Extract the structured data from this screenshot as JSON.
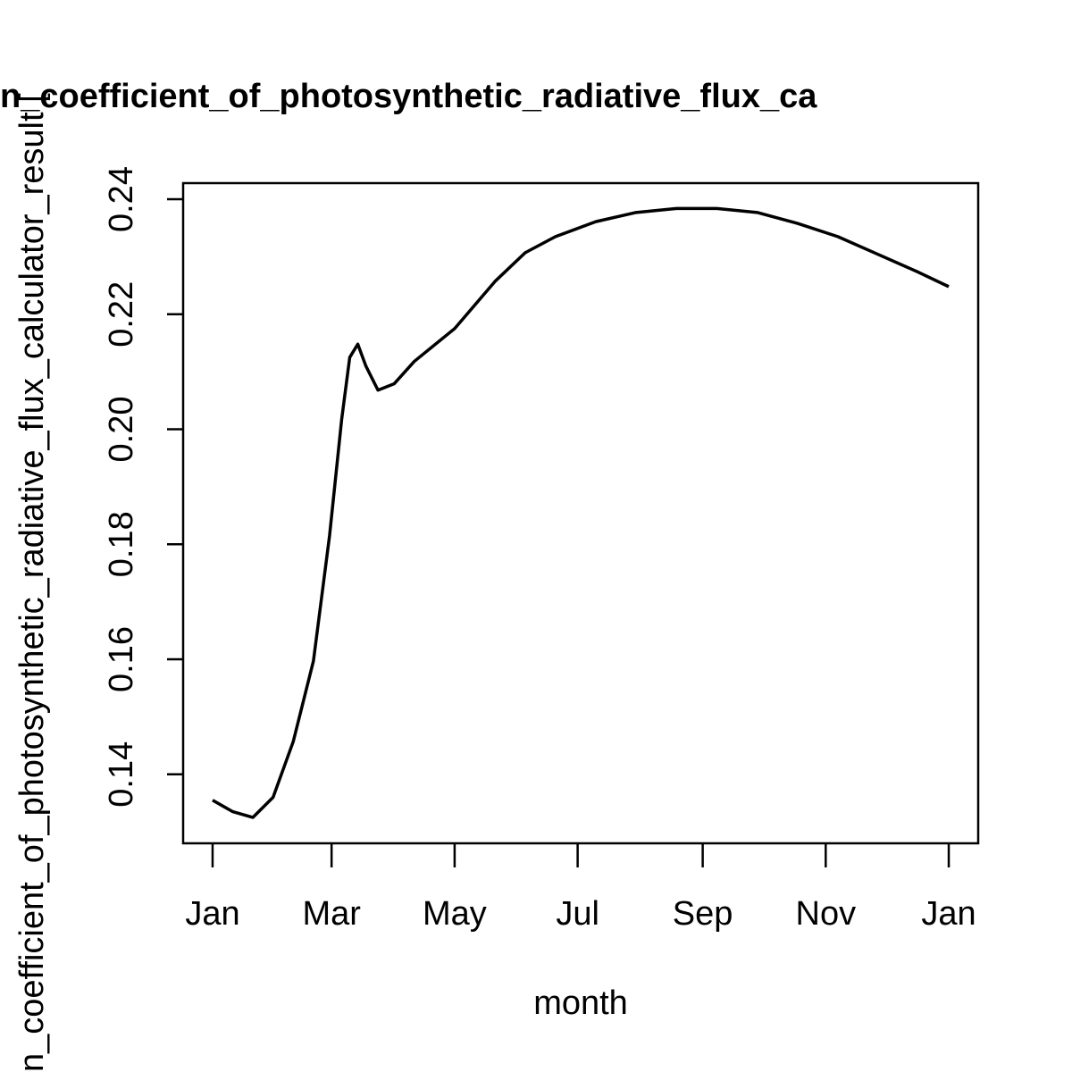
{
  "chart_data": {
    "type": "line",
    "title": "n_coefficient_of_photosynthetic_radiative_flux_ca",
    "x_label": "month",
    "y_label": "n_coefficient_of_photosynthetic_radiative_flux_calculator_result [",
    "x": [
      0,
      10,
      20,
      30,
      40,
      50,
      58,
      64,
      68,
      72,
      76,
      82,
      90,
      100,
      120,
      140,
      155,
      170,
      190,
      210,
      230,
      250,
      270,
      290,
      310,
      330,
      350,
      365
    ],
    "series": [
      {
        "color": "#000000",
        "values": [
          0.1355,
          0.1335,
          0.1325,
          0.136,
          0.1457,
          0.1597,
          0.1815,
          0.2017,
          0.2125,
          0.2148,
          0.211,
          0.2068,
          0.2079,
          0.2118,
          0.2175,
          0.2257,
          0.2307,
          0.2335,
          0.2361,
          0.2377,
          0.2384,
          0.2384,
          0.2377,
          0.2358,
          0.2335,
          0.2304,
          0.2273,
          0.2248
        ]
      }
    ],
    "xlim": [
      -14.6,
      379.6
    ],
    "xticks": [
      {
        "value": 0,
        "label": "Jan"
      },
      {
        "value": 59,
        "label": "Mar"
      },
      {
        "value": 120,
        "label": "May"
      },
      {
        "value": 181,
        "label": "Jul"
      },
      {
        "value": 243,
        "label": "Sep"
      },
      {
        "value": 304,
        "label": "Nov"
      },
      {
        "value": 365,
        "label": "Jan"
      }
    ],
    "ylim": [
      0.128,
      0.2428
    ],
    "yticks": [
      0.14,
      0.16,
      0.18,
      0.2,
      {
        "value": 0.2,
        "label": "0.20"
      },
      0.22,
      0.24
    ]
  }
}
